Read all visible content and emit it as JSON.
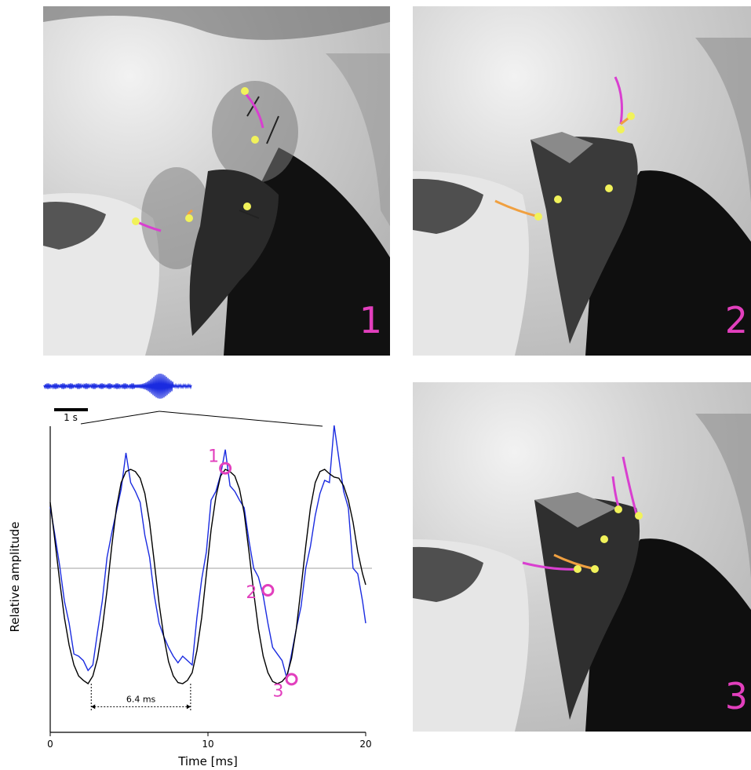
{
  "panels": [
    {
      "id": "p1",
      "label": "1"
    },
    {
      "id": "p2",
      "label": "2"
    },
    {
      "id": "p3",
      "label": "3"
    }
  ],
  "colors": {
    "panel_label": "#e23fbd",
    "marker": "#f1f25a",
    "trace_magenta": "#d93fd0",
    "trace_orange": "#f0a040",
    "signal": "#1a2be0",
    "fit": "#000000",
    "zero_line": "#a0a0a0"
  },
  "overview": {
    "scale_label": "1 s"
  },
  "chart_data": {
    "type": "line",
    "xlabel": "Time [ms]",
    "ylabel": "Relative amplitude",
    "xlim": [
      0,
      20
    ],
    "x_ticks": [
      0,
      10,
      20
    ],
    "ylim": [
      -1.15,
      1.15
    ],
    "grid": false,
    "series": [
      {
        "style": "raw",
        "x": [
          0,
          0.3,
          0.6,
          0.9,
          1.2,
          1.5,
          1.8,
          2.1,
          2.4,
          2.7,
          3.0,
          3.3,
          3.6,
          3.9,
          4.2,
          4.5,
          4.8,
          5.1,
          5.4,
          5.7,
          6.0,
          6.3,
          6.6,
          6.9,
          7.2,
          7.5,
          7.8,
          8.1,
          8.4,
          8.7,
          9.0,
          9.3,
          9.6,
          9.9,
          10.2,
          10.5,
          10.8,
          11.1,
          11.4,
          11.7,
          12.0,
          12.3,
          12.6,
          12.9,
          13.2,
          13.5,
          13.8,
          14.1,
          14.4,
          14.7,
          15.0,
          15.3,
          15.6,
          15.9,
          16.2,
          16.5,
          16.8,
          17.1,
          17.4,
          17.7,
          18.0,
          18.3,
          18.6,
          18.9,
          19.2,
          19.5,
          19.8,
          20.0
        ],
        "y": [
          0.56,
          0.3,
          0.02,
          -0.3,
          -0.5,
          -0.78,
          -0.8,
          -0.84,
          -0.93,
          -0.88,
          -0.58,
          -0.3,
          0.1,
          0.32,
          0.52,
          0.72,
          1.05,
          0.78,
          0.7,
          0.6,
          0.3,
          0.1,
          -0.25,
          -0.5,
          -0.62,
          -0.72,
          -0.8,
          -0.86,
          -0.8,
          -0.84,
          -0.88,
          -0.45,
          -0.1,
          0.15,
          0.62,
          0.7,
          0.85,
          1.08,
          0.75,
          0.7,
          0.62,
          0.55,
          0.25,
          0.0,
          -0.08,
          -0.25,
          -0.5,
          -0.72,
          -0.78,
          -0.84,
          -1.0,
          -0.78,
          -0.55,
          -0.35,
          0.0,
          0.2,
          0.48,
          0.68,
          0.8,
          0.78,
          1.3,
          1.0,
          0.7,
          0.55,
          0.0,
          -0.05,
          -0.3,
          -0.5
        ]
      },
      {
        "style": "fit",
        "x": [
          0,
          0.3,
          0.6,
          0.9,
          1.2,
          1.5,
          1.8,
          2.1,
          2.4,
          2.7,
          3.0,
          3.3,
          3.6,
          3.9,
          4.2,
          4.5,
          4.8,
          5.1,
          5.4,
          5.7,
          6.0,
          6.3,
          6.6,
          6.9,
          7.2,
          7.5,
          7.8,
          8.1,
          8.4,
          8.7,
          9.0,
          9.3,
          9.6,
          9.9,
          10.2,
          10.5,
          10.8,
          11.1,
          11.4,
          11.7,
          12.0,
          12.3,
          12.6,
          12.9,
          13.2,
          13.5,
          13.8,
          14.1,
          14.4,
          14.7,
          15.0,
          15.3,
          15.6,
          15.9,
          16.2,
          16.5,
          16.8,
          17.1,
          17.4,
          17.7,
          18.0,
          18.3,
          18.6,
          18.9,
          19.2,
          19.5,
          19.8,
          20.0
        ],
        "y": [
          0.6,
          0.25,
          -0.12,
          -0.45,
          -0.7,
          -0.88,
          -0.98,
          -1.02,
          -1.05,
          -0.98,
          -0.82,
          -0.55,
          -0.2,
          0.2,
          0.55,
          0.78,
          0.88,
          0.9,
          0.88,
          0.82,
          0.68,
          0.42,
          0.05,
          -0.32,
          -0.62,
          -0.85,
          -0.98,
          -1.04,
          -1.05,
          -1.02,
          -0.95,
          -0.75,
          -0.45,
          -0.05,
          0.35,
          0.65,
          0.84,
          0.9,
          0.88,
          0.84,
          0.72,
          0.5,
          0.15,
          -0.22,
          -0.55,
          -0.8,
          -0.95,
          -1.03,
          -1.05,
          -1.03,
          -0.98,
          -0.82,
          -0.55,
          -0.18,
          0.2,
          0.55,
          0.78,
          0.88,
          0.9,
          0.86,
          0.83,
          0.82,
          0.75,
          0.62,
          0.42,
          0.15,
          -0.05,
          -0.15
        ]
      }
    ],
    "annotations": [
      {
        "label": "1",
        "x": 11.1,
        "y": 0.91
      },
      {
        "label": "2",
        "x": 13.8,
        "y": -0.2
      },
      {
        "label": "3",
        "x": 15.3,
        "y": -1.01
      }
    ],
    "period_marker": {
      "label": "6.4 ms",
      "x_start": 2.6,
      "x_end": 8.9,
      "y": -1.26
    }
  }
}
